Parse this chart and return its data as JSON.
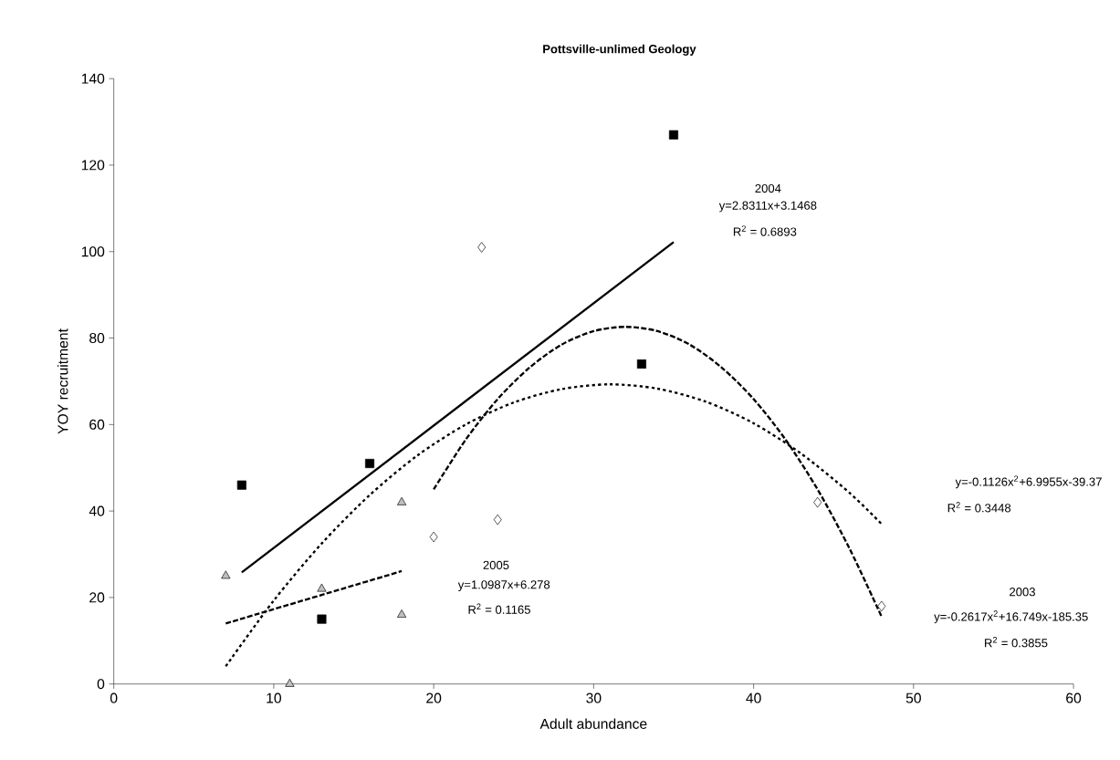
{
  "chart_data": {
    "type": "scatter",
    "title": "Pottsville-unlimed Geology",
    "xlabel": "Adult abundance",
    "ylabel": "YOY recruitment",
    "xlim": [
      0,
      60
    ],
    "ylim": [
      0,
      140
    ],
    "xticks": [
      0,
      10,
      20,
      30,
      40,
      50,
      60
    ],
    "yticks": [
      0,
      20,
      40,
      60,
      80,
      100,
      120,
      140
    ],
    "grid": false,
    "series": [
      {
        "marker": "square",
        "color": "#000000",
        "x": [
          8,
          13,
          16,
          33,
          35
        ],
        "values": [
          46,
          15,
          51,
          74,
          127
        ]
      },
      {
        "marker": "triangle",
        "color": "#bfbfbf",
        "x": [
          7,
          11,
          13,
          18,
          18
        ],
        "values": [
          25,
          0,
          22,
          42,
          16
        ]
      },
      {
        "marker": "diamond",
        "color": "#ffffff",
        "x": [
          20,
          23,
          24,
          44,
          48
        ],
        "values": [
          34,
          101,
          38,
          42,
          18
        ]
      },
      {
        "type": "line",
        "line_style": "solid",
        "color": "#000000",
        "x": [
          8,
          35
        ],
        "values": [
          25.8,
          102.2
        ]
      },
      {
        "type": "line",
        "line_style": "dashed",
        "color": "#000000",
        "x": [
          7,
          18
        ],
        "values": [
          14.0,
          26.1
        ]
      },
      {
        "type": "line",
        "line_style": "dotted",
        "color": "#000000",
        "x": [
          7,
          10,
          13,
          16,
          19,
          22,
          25,
          28,
          31,
          34,
          37,
          40,
          43,
          46,
          48
        ],
        "values": [
          4.1,
          19.3,
          32.5,
          43.7,
          52.9,
          60.0,
          65.1,
          68.2,
          69.3,
          68.3,
          65.3,
          60.3,
          53.2,
          44.2,
          37.0
        ]
      },
      {
        "type": "line",
        "line_style": "dashed",
        "color": "#000000",
        "x": [
          20,
          22,
          24,
          26,
          28,
          30,
          32,
          34,
          36,
          38,
          40,
          42,
          44,
          46,
          48
        ],
        "values": [
          45.0,
          56.5,
          65.9,
          73.2,
          78.5,
          81.6,
          82.6,
          81.6,
          78.5,
          73.2,
          65.9,
          56.5,
          45.0,
          31.3,
          15.6
        ]
      }
    ],
    "annotations": [
      "2004",
      "y=2.8311x+3.1468",
      "R$^{2}$ = 0.6893",
      "y=-0.1126x$^{2}$+6.9955x-39.37",
      "R$^{2}$ = 0.3448",
      "2005",
      "y=1.0987x+6.278",
      "R$^{2}$ = 0.1165",
      "2003",
      "y=-0.2617x$^{2}$+16.749x-185.35",
      "R$^{2}$ = 0.3855"
    ]
  }
}
